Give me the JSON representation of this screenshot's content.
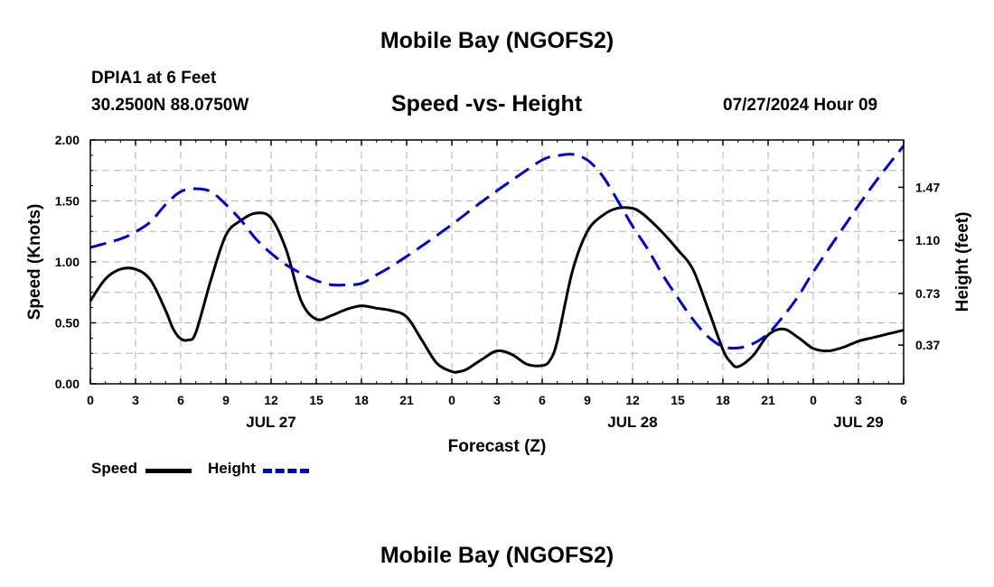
{
  "header": {
    "title": "Mobile Bay (NGOFS2)",
    "station": "DPIA1 at 6 Feet",
    "coords": "30.2500N  88.0750W",
    "subtitle": "Speed -vs- Height",
    "datetime": "07/27/2024 Hour 09",
    "bottom_title": "Mobile Bay (NGOFS2)"
  },
  "legend": {
    "speed_label": "Speed",
    "height_label": "Height"
  },
  "colors": {
    "speed": "#000000",
    "height": "#0000cc",
    "grid": "#b0b0b0"
  },
  "chart_data": {
    "type": "line",
    "title": "Speed -vs- Height",
    "xlabel": "Forecast (Z)",
    "ylabel": "Speed (Knots)",
    "y2label": "Height (feet)",
    "xlim": [
      0,
      54
    ],
    "ylim": [
      0,
      2.0
    ],
    "y2lim": [
      0.1,
      1.8
    ],
    "grid": true,
    "x_ticks": [
      0,
      3,
      6,
      9,
      12,
      15,
      18,
      21,
      24,
      27,
      30,
      33,
      36,
      39,
      42,
      45,
      48,
      51,
      54
    ],
    "x_tick_labels": [
      "0",
      "3",
      "6",
      "9",
      "12",
      "15",
      "18",
      "21",
      "0",
      "3",
      "6",
      "9",
      "12",
      "15",
      "18",
      "21",
      "0",
      "3",
      "6"
    ],
    "day_labels": [
      {
        "x": 12,
        "label": "JUL 27"
      },
      {
        "x": 36,
        "label": "JUL 28"
      },
      {
        "x": 51,
        "label": "JUL 29"
      }
    ],
    "y_ticks": [
      0.0,
      0.5,
      1.0,
      1.5,
      2.0
    ],
    "y_tick_labels": [
      "0.00",
      "0.50",
      "1.00",
      "1.50",
      "2.00"
    ],
    "y2_ticks": [
      0.37,
      0.73,
      1.1,
      1.47
    ],
    "y2_tick_labels": [
      "0.37",
      "0.73",
      "1.10",
      "1.47"
    ],
    "series": [
      {
        "name": "Speed",
        "axis": "left",
        "style": "solid",
        "x": [
          0,
          1,
          2,
          3,
          4,
          5,
          5.5,
          6,
          6.5,
          7,
          8,
          9,
          10,
          11,
          12,
          13,
          14,
          15,
          16,
          17,
          18,
          19,
          20,
          21,
          22,
          23,
          24,
          24.5,
          25,
          26,
          27,
          28,
          29,
          30,
          30.5,
          31,
          32,
          33,
          34,
          35,
          36,
          36.5,
          37,
          38,
          39,
          40,
          41,
          42,
          42.5,
          43,
          44,
          45,
          46,
          47,
          48,
          49,
          50,
          51,
          52,
          53,
          54
        ],
        "values": [
          0.68,
          0.86,
          0.94,
          0.94,
          0.85,
          0.6,
          0.45,
          0.37,
          0.36,
          0.42,
          0.85,
          1.22,
          1.34,
          1.4,
          1.36,
          1.1,
          0.68,
          0.53,
          0.56,
          0.61,
          0.64,
          0.62,
          0.6,
          0.55,
          0.36,
          0.17,
          0.1,
          0.1,
          0.12,
          0.2,
          0.27,
          0.24,
          0.16,
          0.15,
          0.19,
          0.35,
          0.92,
          1.25,
          1.38,
          1.44,
          1.44,
          1.41,
          1.36,
          1.24,
          1.1,
          0.94,
          0.62,
          0.28,
          0.18,
          0.14,
          0.23,
          0.4,
          0.45,
          0.38,
          0.29,
          0.27,
          0.3,
          0.35,
          0.38,
          0.41,
          0.44
        ]
      },
      {
        "name": "Height",
        "axis": "right",
        "style": "dashed",
        "x": [
          0,
          2,
          3,
          4,
          5,
          6,
          7,
          8,
          9,
          10,
          11,
          12,
          13,
          14,
          15,
          16,
          17,
          18,
          19,
          20,
          22,
          24,
          26,
          28,
          30,
          31,
          32,
          33,
          34,
          35,
          36,
          37,
          38,
          39,
          40,
          41,
          42,
          43,
          44,
          45,
          46,
          47,
          48,
          50,
          52,
          54
        ],
        "values": [
          1.05,
          1.11,
          1.16,
          1.23,
          1.35,
          1.44,
          1.46,
          1.44,
          1.35,
          1.24,
          1.11,
          1.01,
          0.93,
          0.87,
          0.82,
          0.79,
          0.79,
          0.8,
          0.86,
          0.92,
          1.06,
          1.21,
          1.37,
          1.52,
          1.66,
          1.69,
          1.7,
          1.66,
          1.55,
          1.38,
          1.2,
          1.04,
          0.86,
          0.7,
          0.55,
          0.43,
          0.36,
          0.35,
          0.38,
          0.45,
          0.57,
          0.71,
          0.88,
          1.19,
          1.49,
          1.76
        ]
      }
    ]
  }
}
